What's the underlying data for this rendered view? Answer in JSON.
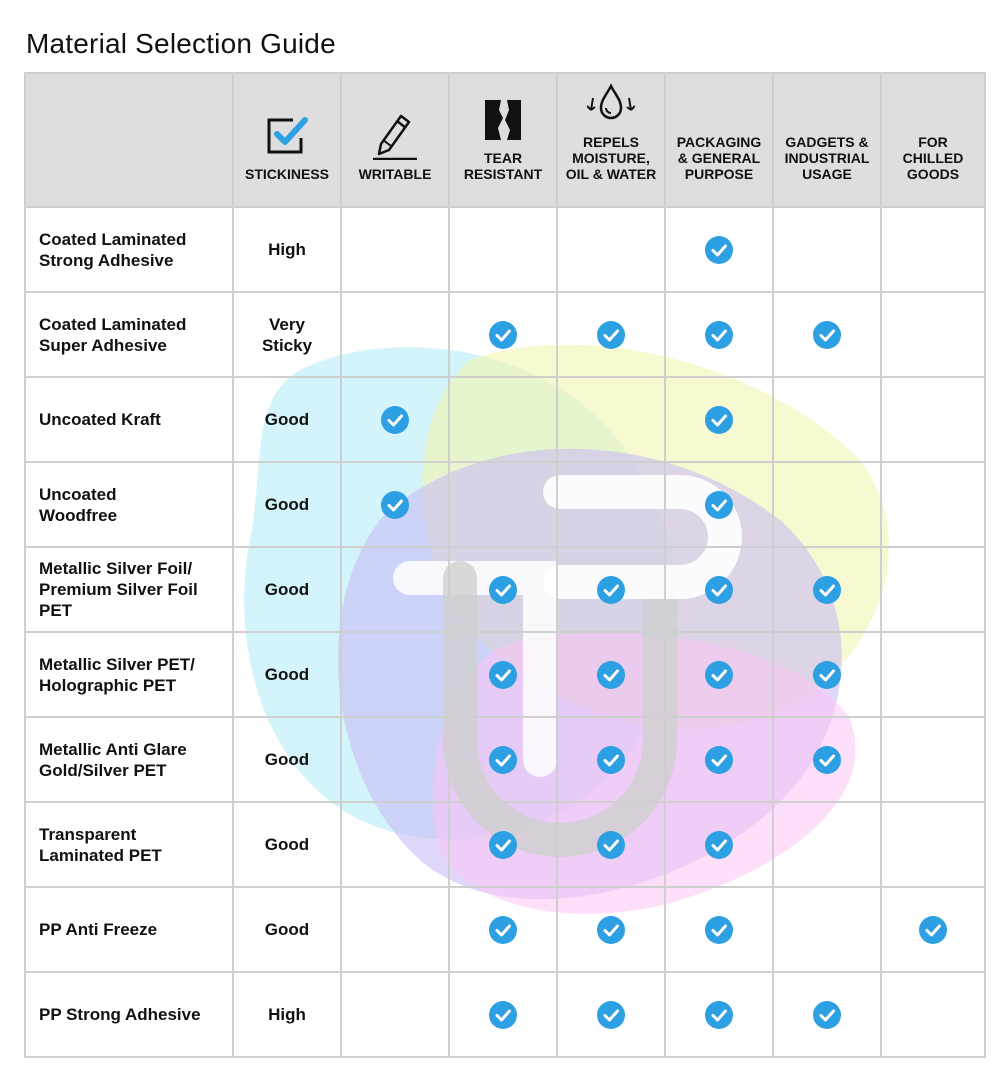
{
  "title": "Material Selection Guide",
  "accent": "#2d9fe3",
  "columns": [
    {
      "key": "stickiness",
      "label": "STICKINESS",
      "icon": "checkbox-icon"
    },
    {
      "key": "writable",
      "label": "WRITABLE",
      "icon": "pencil-icon"
    },
    {
      "key": "tear",
      "label": "TEAR\nRESISTANT",
      "icon": "torn-paper-icon"
    },
    {
      "key": "repels",
      "label": "REPELS\nMOISTURE,\nOIL & WATER",
      "icon": "water-drop-icon"
    },
    {
      "key": "packaging",
      "label": "PACKAGING\n& GENERAL\nPURPOSE",
      "icon": ""
    },
    {
      "key": "gadgets",
      "label": "GADGETS &\nINDUSTRIAL\nUSAGE",
      "icon": ""
    },
    {
      "key": "chilled",
      "label": "FOR\nCHILLED\nGOODS",
      "icon": ""
    }
  ],
  "rows": [
    {
      "name": "Coated Laminated\nStrong Adhesive",
      "stickiness": "High",
      "checks": [
        false,
        false,
        false,
        true,
        false,
        false
      ]
    },
    {
      "name": "Coated Laminated\nSuper Adhesive",
      "stickiness": "Very\nSticky",
      "checks": [
        false,
        true,
        true,
        true,
        true,
        false
      ]
    },
    {
      "name": "Uncoated Kraft",
      "stickiness": "Good",
      "checks": [
        true,
        false,
        false,
        true,
        false,
        false
      ]
    },
    {
      "name": "Uncoated\nWoodfree",
      "stickiness": "Good",
      "checks": [
        true,
        false,
        false,
        true,
        false,
        false
      ]
    },
    {
      "name": "Metallic Silver Foil/\nPremium Silver Foil\nPET",
      "stickiness": "Good",
      "checks": [
        false,
        true,
        true,
        true,
        true,
        false
      ]
    },
    {
      "name": "Metallic Silver PET/\nHolographic PET",
      "stickiness": "Good",
      "checks": [
        false,
        true,
        true,
        true,
        true,
        false
      ]
    },
    {
      "name": "Metallic Anti Glare\nGold/Silver PET",
      "stickiness": "Good",
      "checks": [
        false,
        true,
        true,
        true,
        true,
        false
      ]
    },
    {
      "name": "Transparent\nLaminated PET",
      "stickiness": "Good",
      "checks": [
        false,
        true,
        true,
        true,
        false,
        false
      ]
    },
    {
      "name": "PP Anti Freeze",
      "stickiness": "Good",
      "checks": [
        false,
        true,
        true,
        true,
        false,
        true
      ]
    },
    {
      "name": "PP Strong Adhesive",
      "stickiness": "High",
      "checks": [
        false,
        true,
        true,
        true,
        true,
        false
      ]
    }
  ]
}
